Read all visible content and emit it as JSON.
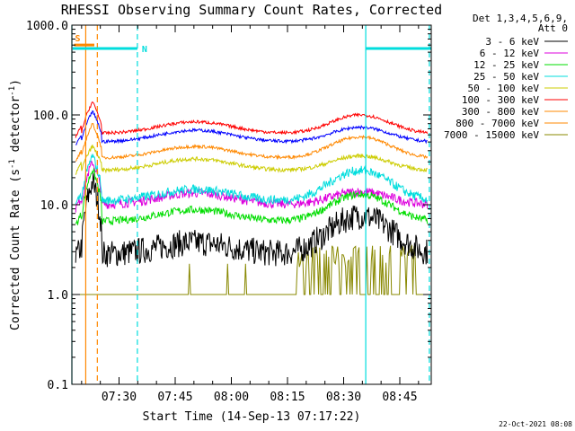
{
  "chart_data": {
    "type": "line",
    "title": "RHESSI Observing Summary Count Rates, Corrected",
    "xlabel": "Start Time (14-Sep-13 07:17:22)",
    "ylabel_main": "Corrected Count Rate (s",
    "ylabel_sup1": "-1",
    "ylabel_mid": " detector",
    "ylabel_sup2": "-1",
    "ylabel_end": ")",
    "y_scale": "log",
    "ylim": [
      0.1,
      1000
    ],
    "xlim_minutes": [
      0,
      96
    ],
    "y_ticks": [
      "0.1",
      "1.0",
      "10.0",
      "100.0",
      "1000.0"
    ],
    "x_ticks": [
      {
        "label": "07:30",
        "minute": 12.6
      },
      {
        "label": "07:45",
        "minute": 27.6
      },
      {
        "label": "08:00",
        "minute": 42.6
      },
      {
        "label": "08:15",
        "minute": 57.6
      },
      {
        "label": "08:30",
        "minute": 72.6
      },
      {
        "label": "08:45",
        "minute": 87.6
      }
    ],
    "legend_header": [
      "Det 1,3,4,5,6,9,",
      "Att 0"
    ],
    "legend_placement": "right-outside",
    "series": [
      {
        "name": "3 - 6 keV",
        "color": "#000000",
        "base": 2.8,
        "peak": 7.5,
        "flare": 18,
        "noise": 0.35
      },
      {
        "name": "6 - 12 keV",
        "color": "#dd00dd",
        "base": 10,
        "peak": 14,
        "flare": 30,
        "noise": 0.12
      },
      {
        "name": "12 - 25 keV",
        "color": "#00dd00",
        "base": 6.5,
        "peak": 13,
        "flare": 25,
        "noise": 0.1
      },
      {
        "name": "25 - 50 keV",
        "color": "#00dddd",
        "base": 11,
        "peak": 24,
        "flare": 35,
        "noise": 0.12
      },
      {
        "name": "50 - 100 keV",
        "color": "#cccc00",
        "base": 24,
        "peak": 35,
        "flare": 45,
        "noise": 0.05
      },
      {
        "name": "100 - 300 keV",
        "color": "#ff0000",
        "base": 62,
        "peak": 100,
        "flare": 140,
        "noise": 0.04
      },
      {
        "name": "300 - 800 keV",
        "color": "#ff8800",
        "base": 33,
        "peak": 57,
        "flare": 80,
        "noise": 0.04
      },
      {
        "name": "800 - 7000 keV",
        "color": "#ff8800",
        "base": 33,
        "peak": 57,
        "flare": 80,
        "noise": 0.0
      },
      {
        "name": "7000 - 15000 keV",
        "color": "#888800",
        "base": 1.0,
        "peak": 2.5,
        "flare": 1.0,
        "noise": 0.0
      }
    ],
    "blue_series": {
      "color": "#0000ff",
      "base": 50,
      "peak": 73,
      "flare": 110,
      "noise": 0.04
    },
    "flag_bars": [
      {
        "label": "S",
        "color": "#ff8800",
        "start": 0.6,
        "end": 6.0,
        "level": 600
      },
      {
        "label": "N",
        "color": "#00dddd",
        "start": 0.2,
        "end": 17.5,
        "level": 550
      },
      {
        "label": "",
        "color": "#00dddd",
        "start": 78.5,
        "end": 96,
        "level": 550
      }
    ],
    "vertical_lines": [
      {
        "minute": 0.0,
        "color": "#00dddd",
        "dashed": false
      },
      {
        "minute": 3.7,
        "color": "#ff8800",
        "dashed": false
      },
      {
        "minute": 6.8,
        "color": "#ff8800",
        "dashed": true
      },
      {
        "minute": 17.5,
        "color": "#00dddd",
        "dashed": true
      },
      {
        "minute": 78.5,
        "color": "#00dddd",
        "dashed": false
      },
      {
        "minute": 95.5,
        "color": "#00dddd",
        "dashed": true
      }
    ],
    "timestamp": "22-Oct-2021 08:08"
  }
}
